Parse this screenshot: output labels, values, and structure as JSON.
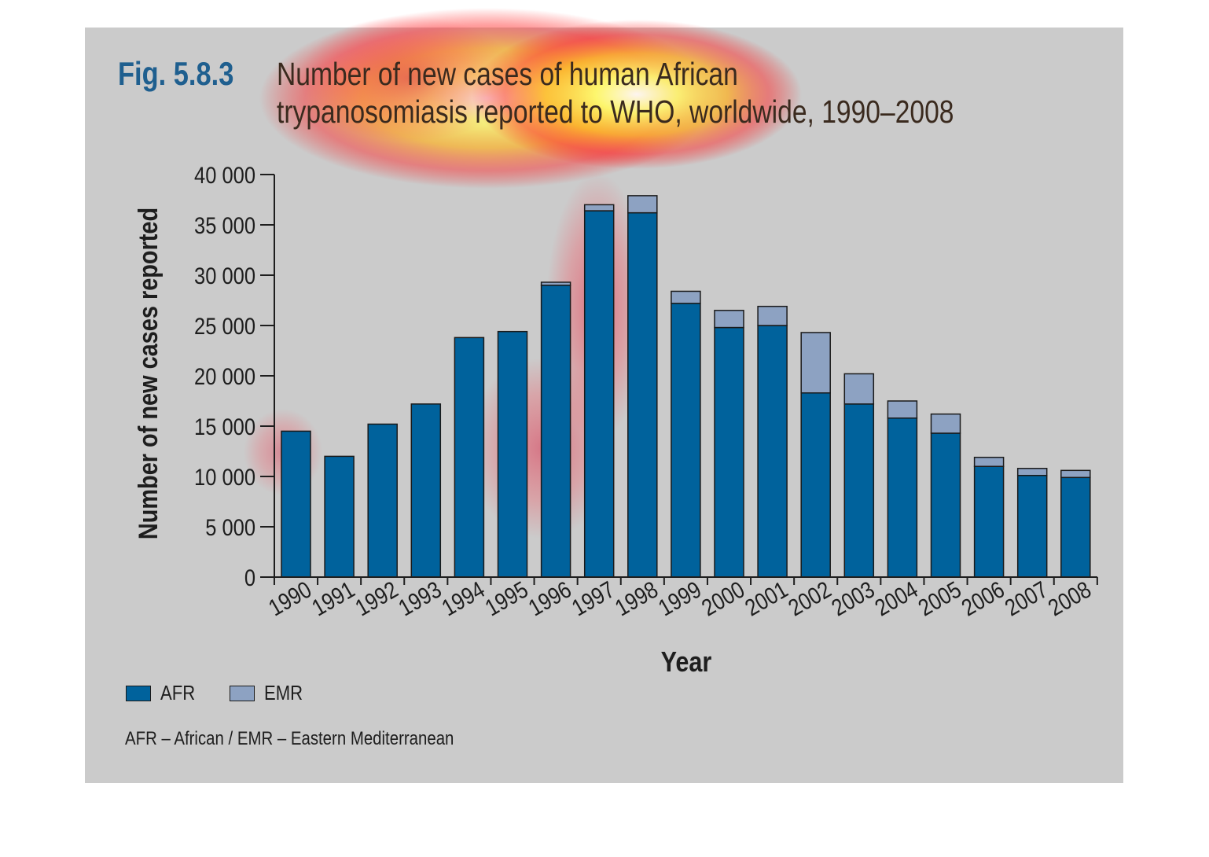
{
  "figure": {
    "label": "Fig. 5.8.3",
    "title_line1": "Number of new cases of human African",
    "title_line2": "trypanosomiasis reported to WHO, worldwide, 1990–2008"
  },
  "legend": {
    "afr_label": "AFR",
    "emr_label": "EMR"
  },
  "footnote": "AFR – African / EMR – Eastern Mediterranean",
  "colors": {
    "panel_background": "#cbcbcb",
    "afr": "#00629c",
    "emr": "#8da2c2",
    "figure_label": "#1f5f8f"
  },
  "chart_data": {
    "type": "bar",
    "stacked": true,
    "title": "Number of new cases of human African trypanosomiasis reported to WHO, worldwide, 1990–2008",
    "xlabel": "Year",
    "ylabel": "Number of new cases reported",
    "ylim": [
      0,
      40000
    ],
    "yticks": [
      0,
      5000,
      10000,
      15000,
      20000,
      25000,
      30000,
      35000,
      40000
    ],
    "ytick_labels": [
      "0",
      "5 000",
      "10 000",
      "15 000",
      "20 000",
      "25 000",
      "30 000",
      "35 000",
      "40 000"
    ],
    "categories": [
      "1990",
      "1991",
      "1992",
      "1993",
      "1994",
      "1995",
      "1996",
      "1997",
      "1998",
      "1999",
      "2000",
      "2001",
      "2002",
      "2003",
      "2004",
      "2005",
      "2006",
      "2007",
      "2008"
    ],
    "series": [
      {
        "name": "AFR",
        "values": [
          14500,
          12000,
          15200,
          17200,
          23800,
          24400,
          29000,
          36400,
          36200,
          27200,
          24800,
          25000,
          18300,
          17200,
          15800,
          14300,
          11000,
          10100,
          9900
        ]
      },
      {
        "name": "EMR",
        "values": [
          0,
          0,
          0,
          0,
          0,
          0,
          300,
          600,
          1700,
          1200,
          1700,
          1900,
          6000,
          3000,
          1700,
          1900,
          900,
          700,
          700
        ]
      }
    ],
    "legend_position": "bottom-left",
    "grid": false
  }
}
